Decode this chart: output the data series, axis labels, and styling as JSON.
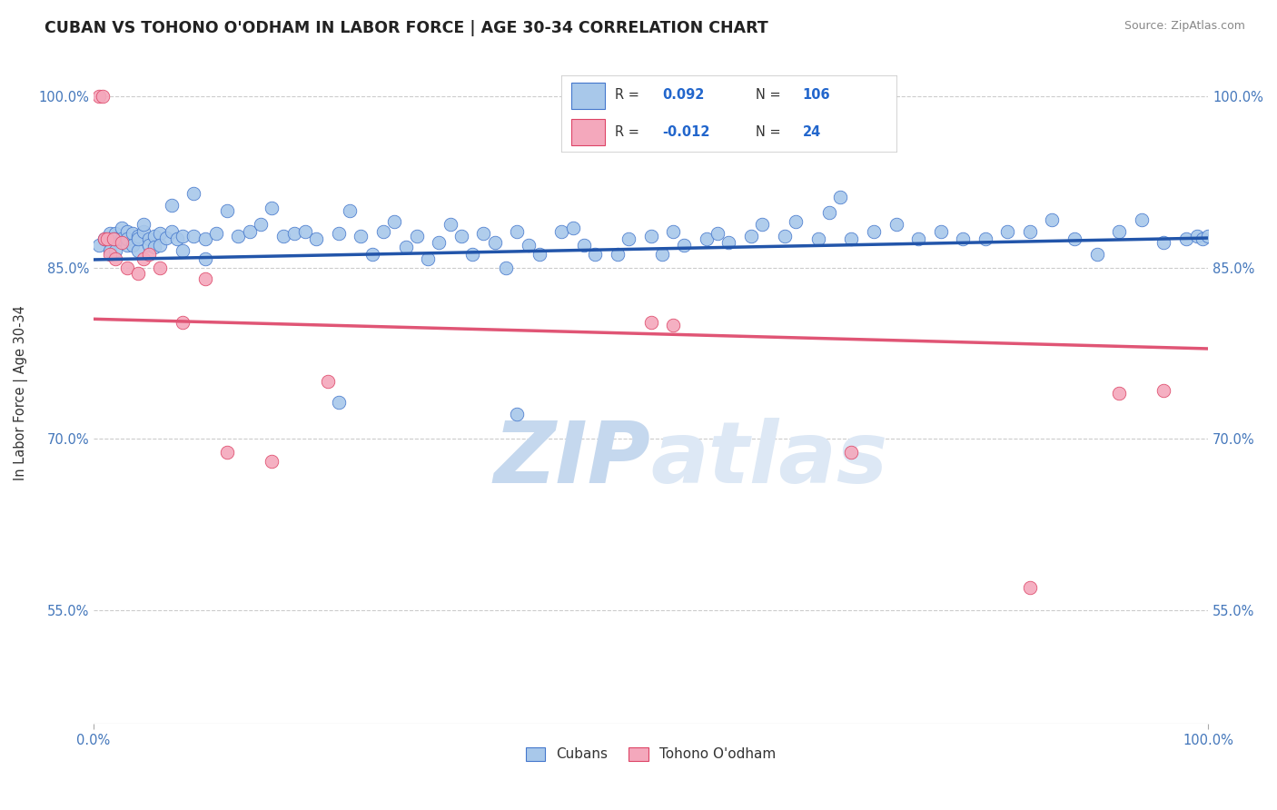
{
  "title": "CUBAN VS TOHONO O'ODHAM IN LABOR FORCE | AGE 30-34 CORRELATION CHART",
  "source": "Source: ZipAtlas.com",
  "ylabel": "In Labor Force | Age 30-34",
  "xlim": [
    0.0,
    1.0
  ],
  "ylim": [
    0.45,
    1.03
  ],
  "yticks": [
    0.55,
    0.7,
    0.85,
    1.0
  ],
  "ytick_labels": [
    "55.0%",
    "70.0%",
    "85.0%",
    "100.0%"
  ],
  "xticks": [
    0.0,
    1.0
  ],
  "xtick_labels": [
    "0.0%",
    "100.0%"
  ],
  "legend_labels": [
    "Cubans",
    "Tohono O'odham"
  ],
  "blue_R": 0.092,
  "blue_N": 106,
  "pink_R": -0.012,
  "pink_N": 24,
  "blue_color": "#a8c8ea",
  "pink_color": "#f4a8bc",
  "blue_edge_color": "#4477cc",
  "pink_edge_color": "#dd4466",
  "blue_line_color": "#2255aa",
  "pink_line_color": "#e05575",
  "axis_label_color": "#4477bb",
  "grid_color": "#cccccc",
  "background_color": "#ffffff",
  "watermark_color": "#dde8f5",
  "blue_x": [
    0.005,
    0.01,
    0.015,
    0.015,
    0.018,
    0.02,
    0.02,
    0.02,
    0.025,
    0.025,
    0.03,
    0.03,
    0.03,
    0.035,
    0.035,
    0.04,
    0.04,
    0.04,
    0.045,
    0.045,
    0.05,
    0.05,
    0.055,
    0.055,
    0.06,
    0.06,
    0.065,
    0.07,
    0.07,
    0.075,
    0.08,
    0.08,
    0.09,
    0.09,
    0.1,
    0.1,
    0.11,
    0.12,
    0.13,
    0.14,
    0.15,
    0.16,
    0.17,
    0.18,
    0.19,
    0.2,
    0.22,
    0.23,
    0.24,
    0.25,
    0.26,
    0.27,
    0.28,
    0.29,
    0.3,
    0.31,
    0.32,
    0.33,
    0.34,
    0.35,
    0.36,
    0.37,
    0.38,
    0.39,
    0.4,
    0.42,
    0.43,
    0.44,
    0.45,
    0.47,
    0.48,
    0.5,
    0.51,
    0.52,
    0.53,
    0.55,
    0.56,
    0.57,
    0.59,
    0.6,
    0.62,
    0.63,
    0.65,
    0.66,
    0.67,
    0.68,
    0.7,
    0.72,
    0.74,
    0.76,
    0.78,
    0.8,
    0.82,
    0.84,
    0.86,
    0.88,
    0.9,
    0.92,
    0.94,
    0.96,
    0.98,
    0.99,
    0.995,
    1.0,
    0.22,
    0.38
  ],
  "blue_y": [
    0.87,
    0.875,
    0.88,
    0.865,
    0.875,
    0.88,
    0.865,
    0.875,
    0.885,
    0.875,
    0.882,
    0.87,
    0.875,
    0.88,
    0.87,
    0.878,
    0.865,
    0.875,
    0.882,
    0.888,
    0.875,
    0.87,
    0.878,
    0.868,
    0.88,
    0.87,
    0.876,
    0.905,
    0.882,
    0.875,
    0.878,
    0.865,
    0.878,
    0.915,
    0.875,
    0.858,
    0.88,
    0.9,
    0.878,
    0.882,
    0.888,
    0.902,
    0.878,
    0.88,
    0.882,
    0.875,
    0.88,
    0.9,
    0.878,
    0.862,
    0.882,
    0.89,
    0.868,
    0.878,
    0.858,
    0.872,
    0.888,
    0.878,
    0.862,
    0.88,
    0.872,
    0.85,
    0.882,
    0.87,
    0.862,
    0.882,
    0.885,
    0.87,
    0.862,
    0.862,
    0.875,
    0.878,
    0.862,
    0.882,
    0.87,
    0.875,
    0.88,
    0.872,
    0.878,
    0.888,
    0.878,
    0.89,
    0.875,
    0.898,
    0.912,
    0.875,
    0.882,
    0.888,
    0.875,
    0.882,
    0.875,
    0.875,
    0.882,
    0.882,
    0.892,
    0.875,
    0.862,
    0.882,
    0.892,
    0.872,
    0.875,
    0.878,
    0.875,
    0.878,
    0.732,
    0.722
  ],
  "pink_x": [
    0.005,
    0.008,
    0.01,
    0.012,
    0.015,
    0.018,
    0.02,
    0.025,
    0.03,
    0.04,
    0.045,
    0.05,
    0.06,
    0.08,
    0.1,
    0.12,
    0.16,
    0.21,
    0.5,
    0.52,
    0.68,
    0.84,
    0.92,
    0.96
  ],
  "pink_y": [
    1.0,
    1.0,
    0.875,
    0.875,
    0.862,
    0.875,
    0.858,
    0.872,
    0.85,
    0.845,
    0.858,
    0.862,
    0.85,
    0.802,
    0.84,
    0.688,
    0.68,
    0.75,
    0.802,
    0.8,
    0.688,
    0.57,
    0.74,
    0.742
  ],
  "blue_line_y0": 0.857,
  "blue_line_y1": 0.876,
  "pink_line_y0": 0.805,
  "pink_line_y1": 0.779
}
